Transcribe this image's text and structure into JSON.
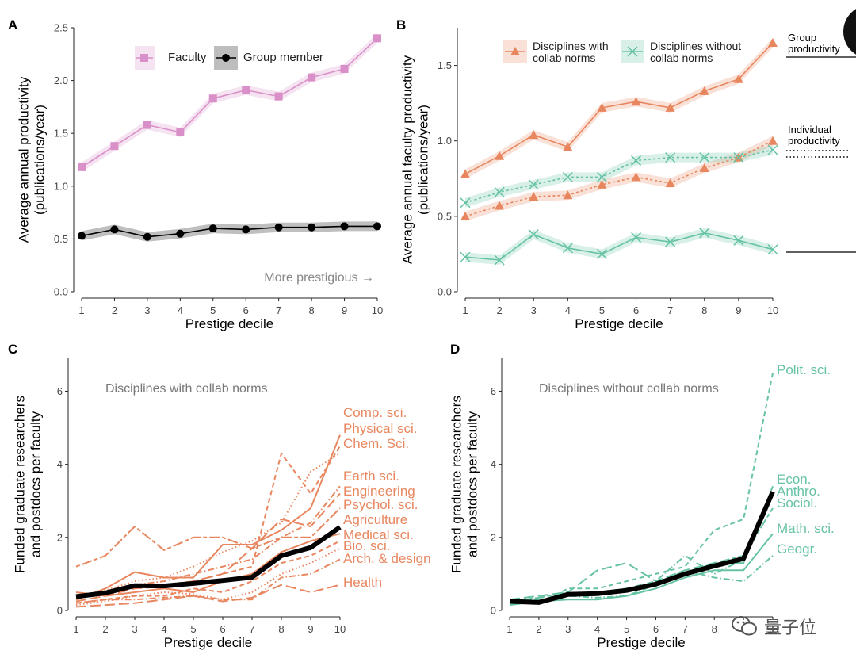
{
  "chart_data": [
    {
      "panel": "A",
      "type": "line",
      "xlabel": "Prestige decile",
      "ylabel": "Average annual productivity\n(publications/year)",
      "x": [
        1,
        2,
        3,
        4,
        5,
        6,
        7,
        8,
        9,
        10
      ],
      "xlim": [
        1,
        10
      ],
      "ylim": [
        0,
        2.5
      ],
      "yticks": [
        "0.0",
        "0.5",
        "1.0",
        "1.5",
        "2.0",
        "2.5"
      ],
      "annotation": "More prestigious →",
      "legend_position": "top",
      "series": [
        {
          "name": "Faculty",
          "color": "#d98fc8",
          "marker": "square",
          "values": [
            1.18,
            1.38,
            1.58,
            1.51,
            1.83,
            1.91,
            1.85,
            2.03,
            2.11,
            2.4
          ]
        },
        {
          "name": "Group member",
          "color": "#000000",
          "marker": "circle",
          "values": [
            0.53,
            0.59,
            0.52,
            0.55,
            0.6,
            0.59,
            0.61,
            0.61,
            0.62,
            0.62
          ]
        }
      ]
    },
    {
      "panel": "B",
      "type": "line",
      "xlabel": "Prestige decile",
      "ylabel": "Average annual faculty productivity\n(publications/year)",
      "x": [
        1,
        2,
        3,
        4,
        5,
        6,
        7,
        8,
        9,
        10
      ],
      "xlim": [
        1,
        10
      ],
      "ylim": [
        0,
        1.75
      ],
      "yticks": [
        "0.0",
        "0.5",
        "1.0",
        "1.5"
      ],
      "legend_position": "top",
      "side_labels": [
        "Group\nproductivity",
        "Individual\nproductivity"
      ],
      "series": [
        {
          "name": "Disciplines with\ncollab norms",
          "group": "Group productivity",
          "color": "#e8875f",
          "marker": "triangle",
          "values": [
            0.78,
            0.9,
            1.04,
            0.96,
            1.22,
            1.26,
            1.22,
            1.33,
            1.41,
            1.65
          ]
        },
        {
          "name": "",
          "group": "Individual productivity",
          "color": "#e8875f",
          "marker": "triangle",
          "values": [
            0.5,
            0.57,
            0.63,
            0.64,
            0.71,
            0.76,
            0.72,
            0.82,
            0.89,
            1.0
          ]
        },
        {
          "name": "Disciplines without\ncollab norms",
          "group": "Individual productivity",
          "color": "#66c2a5",
          "marker": "x",
          "values": [
            0.59,
            0.66,
            0.71,
            0.76,
            0.76,
            0.87,
            0.89,
            0.89,
            0.89,
            0.94
          ]
        },
        {
          "name": "",
          "group": "Group productivity",
          "color": "#66c2a5",
          "marker": "x",
          "values": [
            0.23,
            0.21,
            0.38,
            0.29,
            0.25,
            0.36,
            0.33,
            0.39,
            0.34,
            0.28
          ]
        }
      ]
    },
    {
      "panel": "C",
      "type": "line",
      "title": "Disciplines with collab norms",
      "xlabel": "Prestige decile",
      "ylabel": "Funded graduate researchers\nand postdocs per faculty",
      "x": [
        1,
        2,
        3,
        4,
        5,
        6,
        7,
        8,
        9,
        10
      ],
      "xlim": [
        1,
        10
      ],
      "ylim": [
        0,
        6.9
      ],
      "yticks": [
        "0",
        "2",
        "4",
        "6"
      ],
      "color": "#e8875f",
      "labels": [
        "Comp. sci.",
        "Physical sci.",
        "Chem. Sci.",
        "Earth sci.",
        "Engineering",
        "Psychol. sci.",
        "Agriculture",
        "Medical sci.",
        "Bio. sci.",
        "Arch. & design",
        "Health"
      ],
      "series": [
        {
          "name": "Comp. sci.",
          "dash": "solid",
          "values": [
            0.3,
            0.6,
            1.05,
            0.9,
            0.9,
            1.8,
            1.8,
            2.2,
            2.8,
            4.8
          ]
        },
        {
          "name": "Physical sci.",
          "dash": "dash",
          "values": [
            0.35,
            0.45,
            0.7,
            0.7,
            0.8,
            1.0,
            1.2,
            4.3,
            3.2,
            4.5
          ]
        },
        {
          "name": "Chem. Sci.",
          "dash": "dot",
          "values": [
            0.4,
            0.55,
            0.8,
            0.9,
            1.2,
            1.6,
            1.9,
            2.4,
            3.8,
            4.3
          ]
        },
        {
          "name": "Earth sci.",
          "dash": "dashdot",
          "values": [
            0.3,
            0.5,
            0.7,
            0.8,
            1.0,
            1.2,
            1.4,
            2.0,
            2.4,
            3.4
          ]
        },
        {
          "name": "Engineering",
          "dash": "longdash",
          "values": [
            0.25,
            0.4,
            0.6,
            0.65,
            0.8,
            1.0,
            1.7,
            2.5,
            2.3,
            3.2
          ]
        },
        {
          "name": "Psychol. sci.",
          "dash": "twodash",
          "values": [
            1.2,
            1.5,
            2.3,
            1.65,
            2.0,
            2.0,
            1.7,
            2.0,
            2.0,
            2.8
          ]
        },
        {
          "name": "Agriculture",
          "dash": "solid",
          "values": [
            0.5,
            0.4,
            0.5,
            0.6,
            0.5,
            0.8,
            1.0,
            1.6,
            1.9,
            2.1
          ]
        },
        {
          "name": "Medical sci.",
          "dash": "dash",
          "values": [
            0.2,
            0.3,
            0.4,
            0.4,
            0.6,
            0.5,
            0.8,
            1.3,
            1.5,
            1.9
          ]
        },
        {
          "name": "Bio. sci.",
          "dash": "dot",
          "values": [
            0.15,
            0.25,
            0.4,
            0.5,
            0.45,
            0.3,
            0.5,
            1.0,
            1.3,
            1.7
          ]
        },
        {
          "name": "Arch. & design",
          "dash": "dashdot",
          "values": [
            0.2,
            0.3,
            0.3,
            0.35,
            0.4,
            0.3,
            0.3,
            0.9,
            1.0,
            1.4
          ]
        },
        {
          "name": "Health",
          "dash": "longdash",
          "values": [
            0.1,
            0.15,
            0.2,
            0.3,
            0.4,
            0.25,
            0.35,
            0.7,
            0.5,
            0.7
          ]
        },
        {
          "name": "",
          "dash": "solid",
          "bold": true,
          "color": "#000000",
          "values": [
            0.38,
            0.48,
            0.68,
            0.67,
            0.74,
            0.82,
            0.91,
            1.5,
            1.72,
            2.28
          ]
        }
      ]
    },
    {
      "panel": "D",
      "type": "line",
      "title": "Disciplines without collab norms",
      "xlabel": "Prestige decile",
      "ylabel": "Funded graduate researchers\nand postdocs per faculty",
      "x": [
        1,
        2,
        3,
        4,
        5,
        6,
        7,
        8,
        9,
        10
      ],
      "xlim": [
        1,
        10
      ],
      "ylim": [
        0,
        6.9
      ],
      "yticks": [
        "0",
        "2",
        "4",
        "6"
      ],
      "color": "#66c2a5",
      "labels": [
        "Polit. sci.",
        "Econ.",
        "Anthro.",
        "Sociol.",
        "Math. sci.",
        "Geogr."
      ],
      "series": [
        {
          "name": "Polit. sci.",
          "dash": "dash",
          "values": [
            0.3,
            0.2,
            0.6,
            0.6,
            0.8,
            1.0,
            1.2,
            2.2,
            2.5,
            6.5
          ]
        },
        {
          "name": "Econ.",
          "dash": "longdash",
          "values": [
            0.3,
            0.4,
            0.5,
            1.1,
            1.3,
            0.8,
            1.1,
            1.3,
            1.3,
            3.4
          ]
        },
        {
          "name": "Anthro.",
          "dash": "dotdash",
          "values": [
            0.3,
            0.3,
            0.4,
            0.5,
            0.6,
            0.8,
            1.5,
            1.0,
            1.4,
            3.2
          ]
        },
        {
          "name": "Sociol.",
          "dash": "twodash",
          "values": [
            0.25,
            0.35,
            0.5,
            0.45,
            0.55,
            0.7,
            1.0,
            1.3,
            1.5,
            2.8
          ]
        },
        {
          "name": "Math. sci.",
          "dash": "solid",
          "values": [
            0.15,
            0.25,
            0.3,
            0.3,
            0.4,
            0.6,
            0.9,
            1.1,
            1.1,
            2.1
          ]
        },
        {
          "name": "Geogr.",
          "dash": "dashdot",
          "values": [
            0.15,
            0.3,
            0.4,
            0.35,
            0.4,
            0.7,
            1.1,
            0.9,
            0.8,
            1.5
          ]
        },
        {
          "name": "",
          "dash": "solid",
          "bold": true,
          "color": "#000000",
          "values": [
            0.25,
            0.22,
            0.44,
            0.46,
            0.55,
            0.72,
            1.0,
            1.22,
            1.42,
            3.25
          ]
        }
      ]
    }
  ],
  "panel_letters": [
    "A",
    "B",
    "C",
    "D"
  ],
  "watermark": "量子位"
}
